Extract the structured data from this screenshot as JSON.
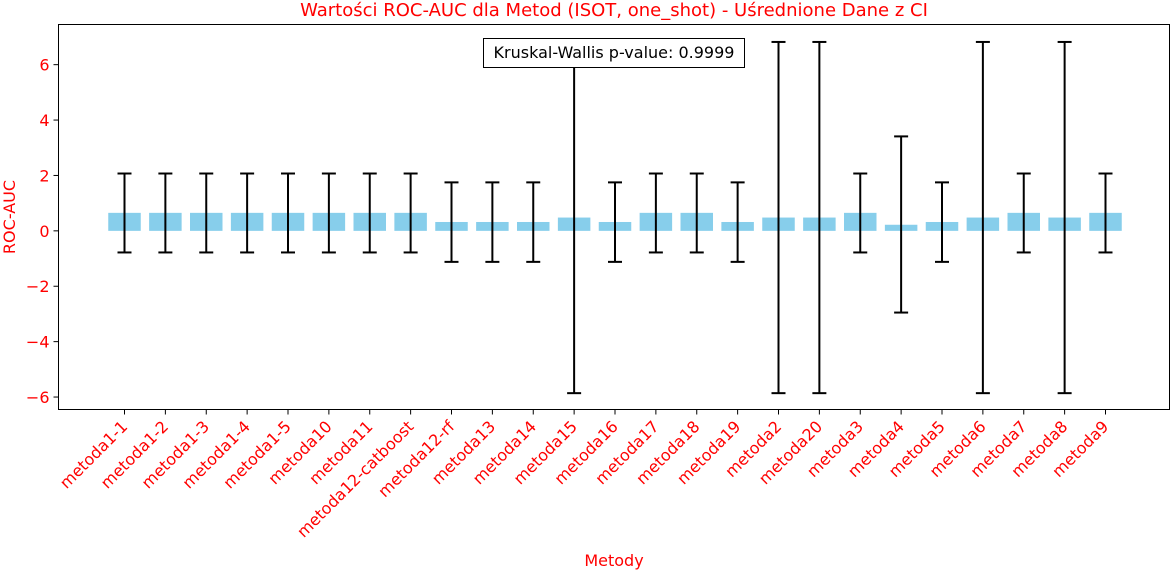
{
  "chart_data": {
    "type": "bar",
    "title": "Wartości ROC-AUC dla Metod (ISOT, one_shot) - Uśrednione Dane z CI",
    "xlabel": "Metody",
    "ylabel": "ROC-AUC",
    "ylim": [
      -6.45,
      7.45
    ],
    "yticks": [
      -6,
      -4,
      -2,
      0,
      2,
      4,
      6
    ],
    "ytick_labels": [
      "−6",
      "−4",
      "−2",
      "0",
      "2",
      "4",
      "6"
    ],
    "grid": false,
    "bar_color": "#87ceeb",
    "errorbar_color": "#000000",
    "categories": [
      "metoda1-1",
      "metoda1-2",
      "metoda1-3",
      "metoda1-4",
      "metoda1-5",
      "metoda10",
      "metoda11",
      "metoda12-catboost",
      "metoda12-rf",
      "metoda13",
      "metoda14",
      "metoda15",
      "metoda16",
      "metoda17",
      "metoda18",
      "metoda19",
      "metoda2",
      "metoda20",
      "metoda3",
      "metoda4",
      "metoda5",
      "metoda6",
      "metoda7",
      "metoda8",
      "metoda9"
    ],
    "values": [
      0.65,
      0.65,
      0.65,
      0.65,
      0.65,
      0.65,
      0.65,
      0.65,
      0.32,
      0.32,
      0.32,
      0.48,
      0.32,
      0.65,
      0.65,
      0.32,
      0.48,
      0.48,
      0.65,
      0.22,
      0.32,
      0.48,
      0.65,
      0.48,
      0.65
    ],
    "ci_lower": [
      -0.78,
      -0.78,
      -0.78,
      -0.78,
      -0.78,
      -0.78,
      -0.78,
      -0.78,
      -1.12,
      -1.12,
      -1.12,
      -5.86,
      -1.12,
      -0.78,
      -0.78,
      -1.12,
      -5.86,
      -5.86,
      -0.78,
      -2.95,
      -1.12,
      -5.86,
      -0.78,
      -5.86,
      -0.78
    ],
    "ci_upper": [
      2.07,
      2.07,
      2.07,
      2.07,
      2.07,
      2.07,
      2.07,
      2.07,
      1.75,
      1.75,
      1.75,
      6.82,
      1.75,
      2.07,
      2.07,
      1.75,
      6.82,
      6.82,
      2.07,
      3.41,
      1.75,
      6.82,
      2.07,
      6.82,
      2.07
    ],
    "annotation": "Kruskal-Wallis p-value: 0.9999"
  }
}
